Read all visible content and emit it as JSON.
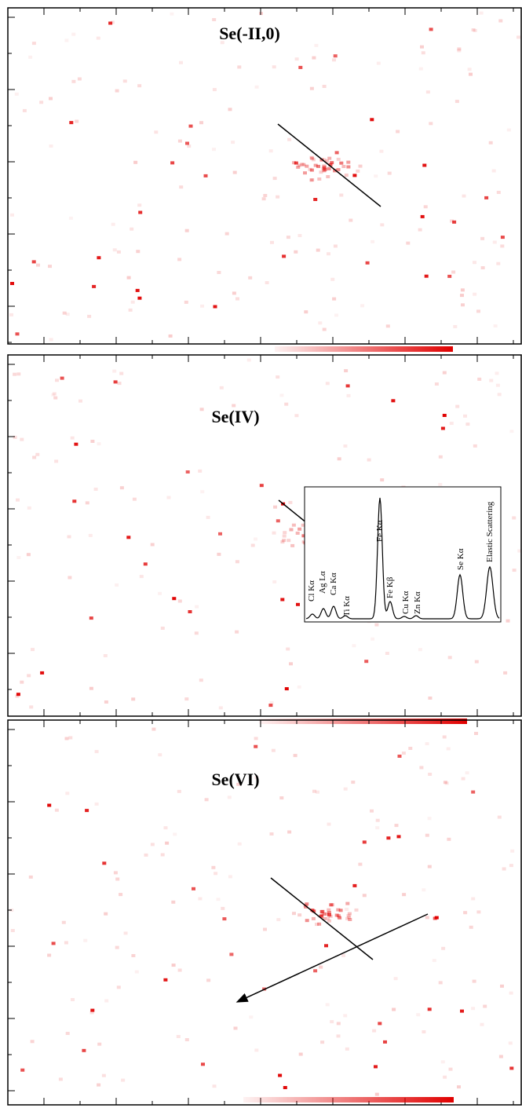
{
  "panels": [
    {
      "label": "Se(-II,0)"
    },
    {
      "label": "Se(IV)"
    },
    {
      "label": "Se(VI)"
    }
  ],
  "inset": {
    "peaks": [
      "Cl Kα",
      "Ag Lα",
      "Ca Kα",
      "Ti Kα",
      "Fe Kα",
      "Fe Kβ",
      "Cu Kα",
      "Zn Kα",
      "Se Kα",
      "Elastic Scattering"
    ]
  }
}
